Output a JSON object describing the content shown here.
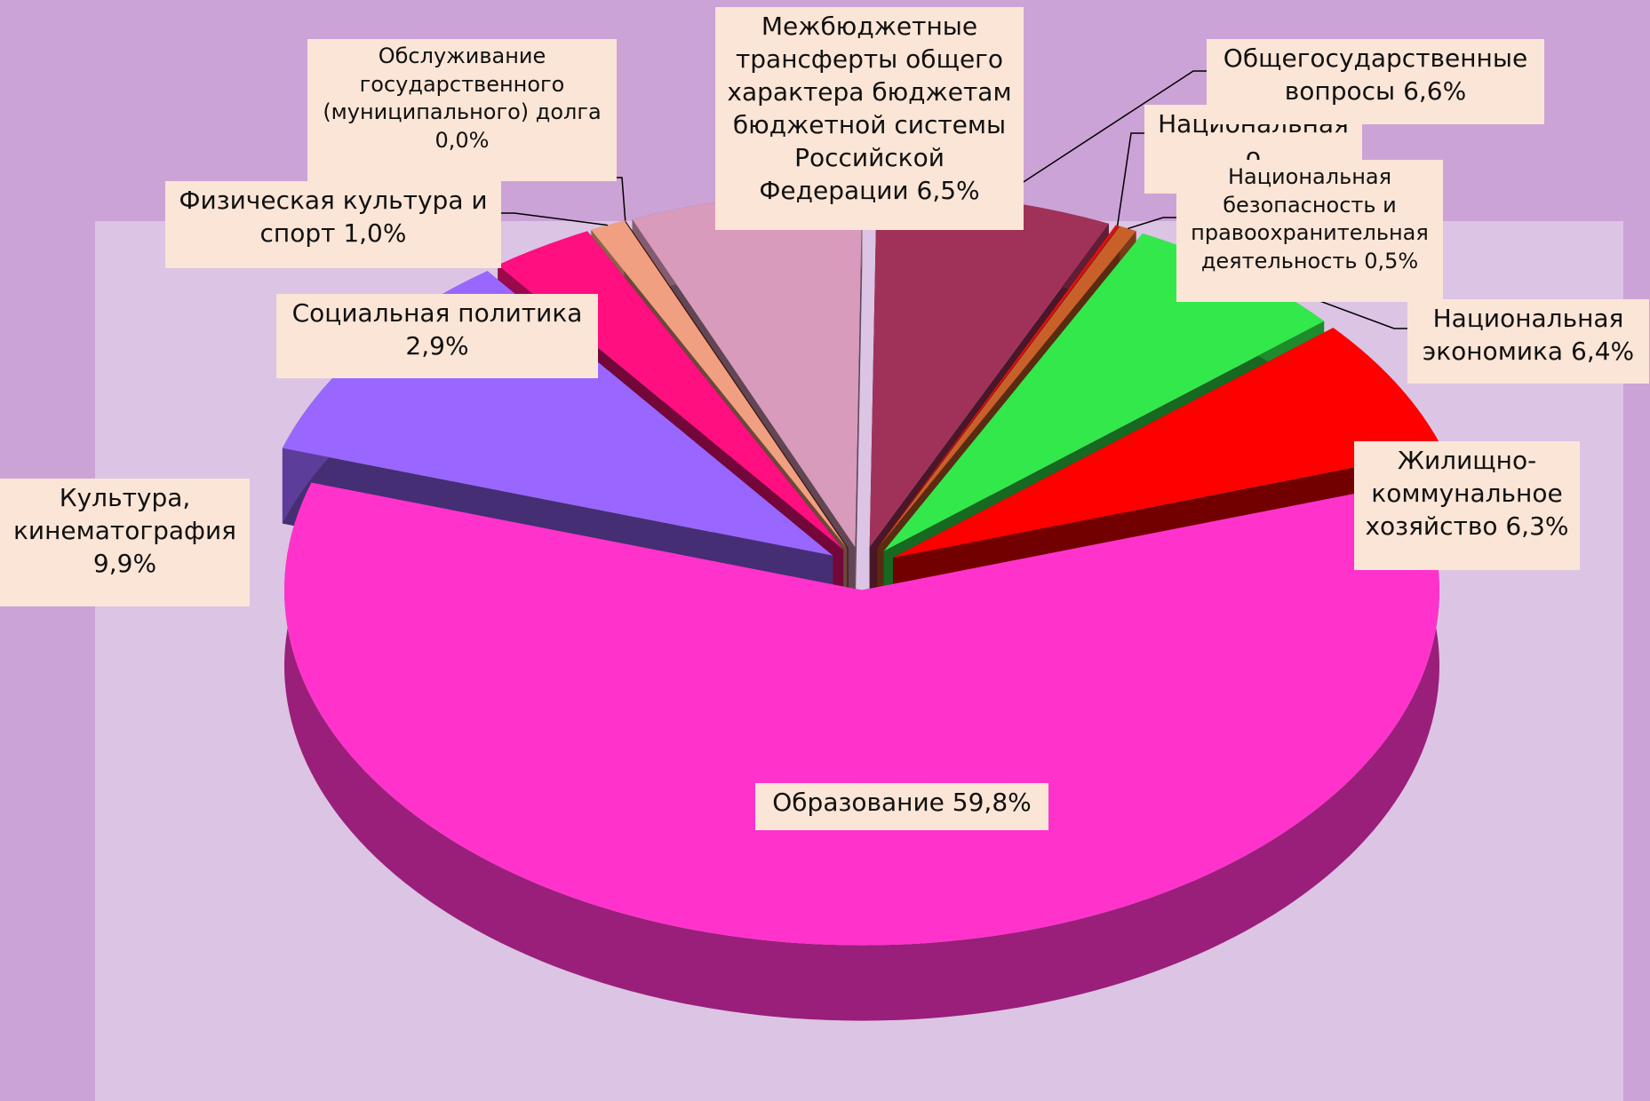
{
  "chart_data": {
    "type": "pie",
    "categories": [
      "Общегосударственные вопросы",
      "Национальная о",
      "Национальная безопасность и правоохранительная деятельность",
      "Национальная экономика",
      "Жилищно-коммунальное хозяйство",
      "Образование",
      "Культура, кинематография",
      "Социальная политика",
      "Физическая культура и спорт",
      "Обслуживание государственного (муниципального) долга",
      "Межбюджетные трансферты общего характера бюджетам бюджетной системы Российской Федерации"
    ],
    "values": [
      6.6,
      0.1,
      0.5,
      6.4,
      6.3,
      59.8,
      9.9,
      2.9,
      1.0,
      0.0,
      6.5
    ],
    "value_labels": [
      "6,6%",
      null,
      "0,5%",
      "6,4%",
      "6,3%",
      "59,8%",
      "9,9%",
      "2,9%",
      "1,0%",
      "0,0%",
      "6,5%"
    ],
    "colors": [
      "#a0325a",
      "#e01010",
      "#c8602a",
      "#33e84a",
      "#ff0000",
      "#ff33cc",
      "#9966ff",
      "#ff0f7f",
      "#f0a080",
      "#8b2020",
      "#d89bbb"
    ]
  }
}
